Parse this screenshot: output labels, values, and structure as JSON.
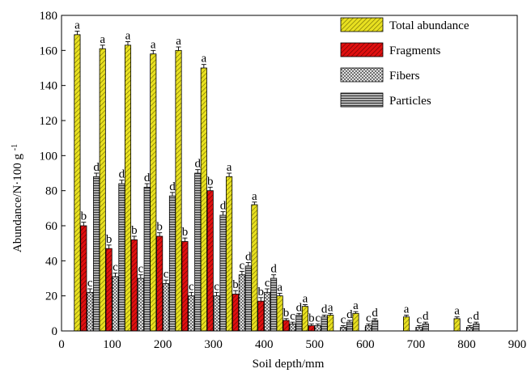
{
  "chart_data": {
    "type": "bar",
    "xlabel": "Soil depth/mm",
    "ylabel": "Abundance/N·100 g",
    "ylabel_superscript": "-1",
    "xlim": [
      0,
      900
    ],
    "ylim": [
      0,
      180
    ],
    "x_ticks": [
      0,
      100,
      200,
      300,
      400,
      500,
      600,
      700,
      800,
      900
    ],
    "y_ticks": [
      0,
      20,
      40,
      60,
      80,
      100,
      120,
      140,
      160,
      180
    ],
    "legend_position": "top-right",
    "depths": [
      50,
      100,
      150,
      200,
      250,
      300,
      350,
      400,
      450,
      500,
      550,
      600,
      700,
      800
    ],
    "series": [
      {
        "name": "Total abundance",
        "fill": "#e8e020",
        "pattern": "diagonal-hatch",
        "values": [
          169,
          161,
          163,
          158,
          160,
          150,
          88,
          72,
          20,
          14,
          9,
          10,
          8,
          7
        ],
        "errors": [
          2,
          2,
          2,
          2,
          2,
          2,
          2,
          1.5,
          1.5,
          1,
          1,
          1,
          1,
          1
        ],
        "letters": [
          "a",
          "a",
          "a",
          "a",
          "a",
          "a",
          "a",
          "a",
          "a",
          "a",
          "a",
          "a",
          "a",
          "a"
        ]
      },
      {
        "name": "Fragments",
        "fill": "#e01010",
        "pattern": "diagonal-hatch",
        "values": [
          60,
          47,
          52,
          54,
          51,
          80,
          21,
          17,
          6,
          3,
          null,
          null,
          null,
          null
        ],
        "errors": [
          2,
          2,
          2,
          2,
          2,
          2,
          2,
          2,
          1,
          1,
          null,
          null,
          null,
          null
        ],
        "letters": [
          "b",
          "b",
          "b",
          "b",
          "b",
          "b",
          "b",
          "b",
          "b",
          "b",
          "",
          "",
          "",
          ""
        ]
      },
      {
        "name": "Fibers",
        "fill": "#ffffff",
        "pattern": "crosshatch",
        "values": [
          22,
          31,
          30,
          27,
          20,
          20,
          32,
          22,
          4,
          3,
          2,
          3,
          2,
          2
        ],
        "errors": [
          2,
          2,
          2,
          2,
          2,
          2,
          2,
          2,
          1,
          1,
          1,
          1,
          1,
          1
        ],
        "letters": [
          "c",
          "c",
          "c",
          "c",
          "c",
          "c",
          "c",
          "c",
          "c",
          "c",
          "c",
          "c",
          "c",
          "c"
        ]
      },
      {
        "name": "Particles",
        "fill": "#a8a8a8",
        "pattern": "horizontal-lines",
        "values": [
          88,
          84,
          82,
          77,
          90,
          66,
          37,
          30,
          9,
          8,
          5,
          6,
          4,
          4
        ],
        "errors": [
          2,
          2,
          2,
          2,
          2,
          2,
          2,
          2,
          1,
          1,
          1,
          1,
          1,
          1
        ],
        "letters": [
          "d",
          "d",
          "d",
          "d",
          "d",
          "d",
          "d",
          "d",
          "d",
          "d",
          "d",
          "d",
          "d",
          "d"
        ]
      }
    ]
  }
}
